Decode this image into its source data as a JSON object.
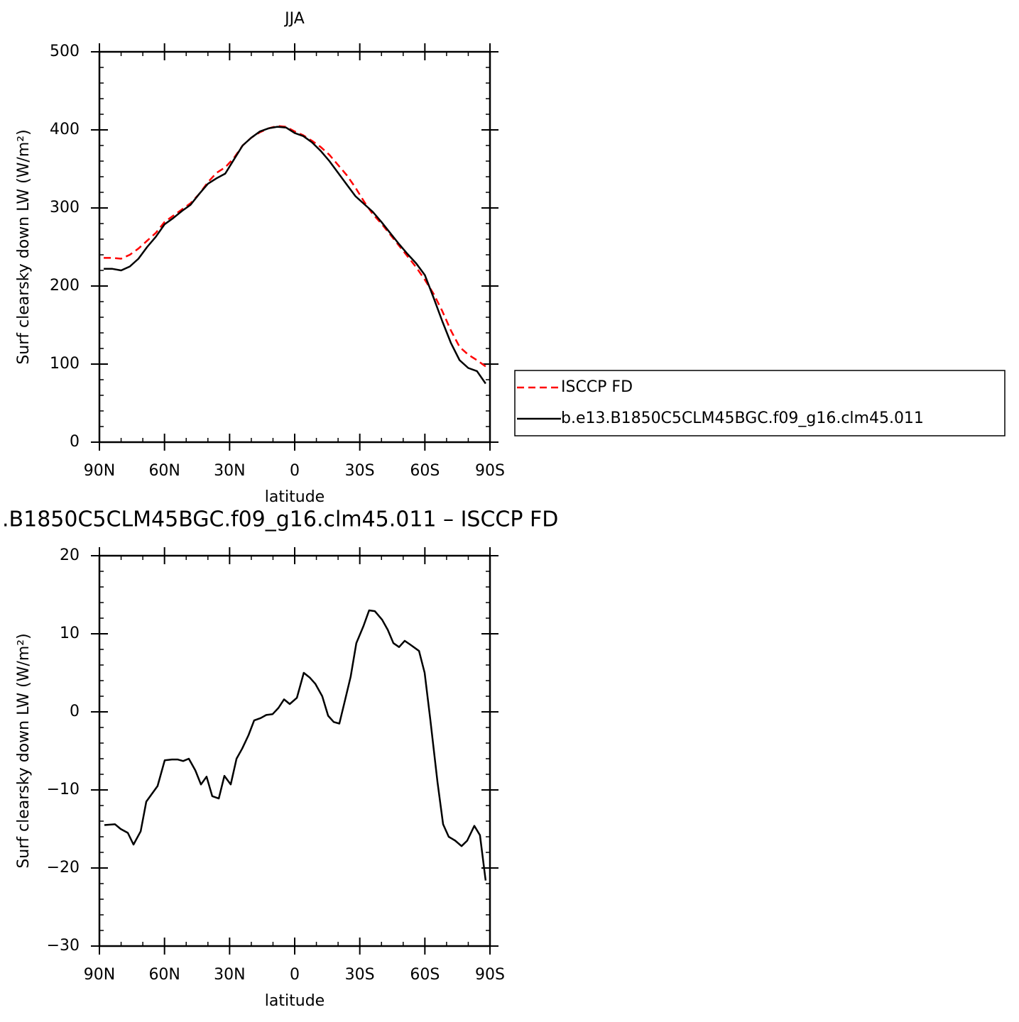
{
  "chart_data": [
    {
      "type": "line",
      "title": "JJA",
      "xlabel": "latitude",
      "ylabel": "Surf clearsky down LW (W/m²)",
      "xlim": [
        90,
        -90
      ],
      "xticks": [
        {
          "value": 90,
          "label": "90N"
        },
        {
          "value": 60,
          "label": "60N"
        },
        {
          "value": 30,
          "label": "30N"
        },
        0,
        {
          "value": -30,
          "label": "30S"
        },
        {
          "value": -60,
          "label": "60S"
        },
        {
          "value": -90,
          "label": "90S"
        }
      ],
      "ylim": [
        0,
        500
      ],
      "yticks": [
        0,
        100,
        200,
        300,
        400,
        500
      ],
      "legend": "right",
      "x": [
        88,
        84,
        80,
        76,
        72,
        68,
        64,
        60,
        56,
        52,
        48,
        44,
        40,
        36,
        32,
        28,
        24,
        20,
        16,
        12,
        8,
        4,
        0,
        -4,
        -8,
        -12,
        -16,
        -20,
        -24,
        -28,
        -32,
        -36,
        -40,
        -44,
        -48,
        -52,
        -56,
        -60,
        -64,
        -68,
        -72,
        -76,
        -80,
        -84,
        -88
      ],
      "series": [
        {
          "name": "ISCCP FD",
          "color": "#ff0000",
          "dash": true,
          "values": [
            236,
            236,
            235,
            240,
            248,
            258,
            268,
            282,
            290,
            298,
            306,
            318,
            333,
            345,
            352,
            364,
            380,
            390,
            397,
            402,
            405,
            404,
            398,
            393,
            386,
            378,
            368,
            355,
            342,
            326,
            308,
            292,
            280,
            266,
            252,
            238,
            224,
            208,
            190,
            168,
            143,
            122,
            112,
            105,
            97
          ]
        },
        {
          "name": "b.e13.B1850C5CLM45BGC.f09_g16.clm45.011",
          "color": "#000000",
          "dash": false,
          "values": [
            222,
            222,
            220,
            225,
            235,
            250,
            263,
            279,
            287,
            296,
            304,
            318,
            331,
            338,
            344,
            362,
            380,
            390,
            398,
            402,
            404,
            403,
            396,
            392,
            384,
            373,
            360,
            345,
            330,
            315,
            305,
            295,
            282,
            268,
            254,
            241,
            229,
            214,
            185,
            155,
            127,
            105,
            95,
            91,
            75
          ]
        }
      ]
    },
    {
      "type": "line",
      "title": ".B1850C5CLM45BGC.f09_g16.clm45.011 – ISCCP FD",
      "xlabel": "latitude",
      "ylabel": "Surf clearsky down LW (W/m²)",
      "xlim": [
        90,
        -90
      ],
      "xticks": [
        {
          "value": 90,
          "label": "90N"
        },
        {
          "value": 60,
          "label": "60N"
        },
        {
          "value": 30,
          "label": "30N"
        },
        0,
        {
          "value": -30,
          "label": "30S"
        },
        {
          "value": -60,
          "label": "60S"
        },
        {
          "value": -90,
          "label": "90S"
        }
      ],
      "ylim": [
        -30,
        20
      ],
      "yticks": [
        {
          "value": -30,
          "label": "−30"
        },
        {
          "value": -20,
          "label": "−20"
        },
        {
          "value": -10,
          "label": "−10"
        },
        0,
        10,
        20
      ],
      "x": [
        87.7,
        82.8,
        80.2,
        76.9,
        74.3,
        71.0,
        68.4,
        63.2,
        59.9,
        56.6,
        54.0,
        51.4,
        48.8,
        45.8,
        43.2,
        40.6,
        38.0,
        35.0,
        32.4,
        29.5,
        26.8,
        24.2,
        21.3,
        18.7,
        15.7,
        13.1,
        10.2,
        7.5,
        4.9,
        2.3,
        -1.0,
        -4.2,
        -6.9,
        -9.5,
        -12.7,
        -15.4,
        -18.0,
        -20.6,
        -23.2,
        -25.8,
        -28.4,
        -31.7,
        -34.3,
        -36.9,
        -40.3,
        -42.9,
        -45.5,
        -48.1,
        -50.7,
        -53.3,
        -57.3,
        -59.9,
        -62.5,
        -65.8,
        -68.4,
        -71.0,
        -74.0,
        -76.9,
        -79.5,
        -82.8,
        -85.4,
        -88.0
      ],
      "series": [
        {
          "color": "#000000",
          "values": [
            -14.5,
            -14.4,
            -15,
            -15.5,
            -17,
            -15.3,
            -11.5,
            -9.5,
            -6.2,
            -6.1,
            -6.1,
            -6.3,
            -6,
            -7.5,
            -9.3,
            -8.3,
            -10.8,
            -11.1,
            -8.2,
            -9.3,
            -6,
            -4.7,
            -3,
            -1.1,
            -0.8,
            -0.4,
            -0.3,
            0.5,
            1.6,
            1,
            1.8,
            5,
            4.4,
            3.6,
            2,
            -0.5,
            -1.3,
            -1.5,
            1.5,
            4.5,
            8.8,
            11,
            13,
            12.9,
            11.8,
            10.5,
            8.8,
            8.3,
            9.1,
            8.6,
            7.8,
            5,
            -1,
            -9,
            -14.4,
            -16,
            -16.5,
            -17.2,
            -16.5,
            -14.6,
            -15.8,
            -21.6
          ]
        }
      ]
    }
  ]
}
